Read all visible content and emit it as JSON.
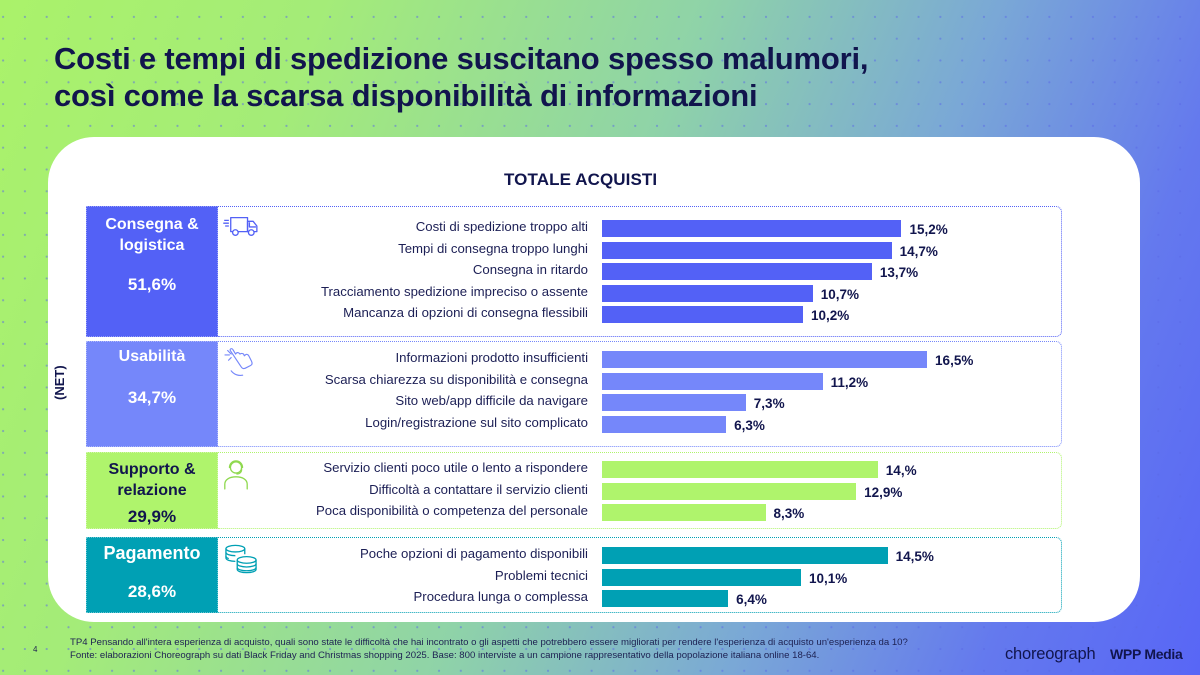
{
  "slide": {
    "title_line1": "Costi e tempi di spedizione suscitano spesso malumori,",
    "title_line2": "così come la scarsa disponibilità di informazioni",
    "page_number": "4",
    "footnote_line1": "TP4 Pensando all'intera esperienza di acquisto, quali sono state le difficoltà che hai incontrato o gli aspetti che potrebbero essere migliorati per rendere l'esperienza di acquisto un'esperienza da 10?",
    "footnote_line2": "Fonte: elaborazioni Choreograph su dati Black Friday and Christmas shopping 2025. Base: 800 interviste a un campione rappresentativo della popolazione italiana online 18-64.",
    "logo_choreograph": "choreograph",
    "logo_wpp": "WPP Media"
  },
  "chart_data": {
    "type": "bar",
    "orientation": "horizontal",
    "title": "TOTALE ACQUISTI",
    "net_axis_label": "(NET)",
    "xlabel": "",
    "ylabel": "",
    "unit": "%",
    "xlim": [
      0,
      16.5
    ],
    "groups": [
      {
        "name": "Consegna & logistica",
        "name_lines": [
          "Consegna &",
          "logistica"
        ],
        "net_value": 51.6,
        "net_label": "51,6%",
        "icon": "delivery-truck-icon",
        "color": "#5361f6",
        "text_color": "#ffffff",
        "items": [
          {
            "label": "Costi di spedizione troppo alti",
            "value": 15.2,
            "value_label": "15,2%"
          },
          {
            "label": "Tempi di consegna troppo lunghi",
            "value": 14.7,
            "value_label": "14,7%"
          },
          {
            "label": "Consegna in ritardo",
            "value": 13.7,
            "value_label": "13,7%"
          },
          {
            "label": "Tracciamento spedizione impreciso o assente",
            "value": 10.7,
            "value_label": "10,7%"
          },
          {
            "label": "Mancanza di opzioni di consegna flessibili",
            "value": 10.2,
            "value_label": "10,2%"
          }
        ]
      },
      {
        "name": "Usabilità",
        "name_lines": [
          "Usabilità"
        ],
        "net_value": 34.7,
        "net_label": "34,7%",
        "icon": "hand-touch-icon",
        "color": "#7587fa",
        "text_color": "#ffffff",
        "items": [
          {
            "label": "Informazioni prodotto insufficienti",
            "value": 16.5,
            "value_label": "16,5%"
          },
          {
            "label": "Scarsa chiarezza su disponibilità e consegna",
            "value": 11.2,
            "value_label": "11,2%"
          },
          {
            "label": "Sito web/app difficile da navigare",
            "value": 7.3,
            "value_label": "7,3%"
          },
          {
            "label": "Login/registrazione sul sito complicato",
            "value": 6.3,
            "value_label": "6,3%"
          }
        ]
      },
      {
        "name": "Supporto & relazione",
        "name_lines": [
          "Supporto &",
          "relazione"
        ],
        "net_value": 29.9,
        "net_label": "29,9%",
        "icon": "headset-agent-icon",
        "color": "#aff46c",
        "text_color": "#11154d",
        "items": [
          {
            "label": "Servizio clienti poco utile o lento a rispondere",
            "value": 14.0,
            "value_label": "14,%"
          },
          {
            "label": "Difficoltà a contattare il servizio clienti",
            "value": 12.9,
            "value_label": "12,9%"
          },
          {
            "label": "Poca disponibilità o competenza del personale",
            "value": 8.3,
            "value_label": "8,3%"
          }
        ]
      },
      {
        "name": "Pagamento",
        "name_lines": [
          "Pagamento"
        ],
        "net_value": 28.6,
        "net_label": "28,6%",
        "icon": "coins-stack-icon",
        "color": "#00a0b4",
        "text_color": "#ffffff",
        "items": [
          {
            "label": "Poche opzioni di pagamento disponibili",
            "value": 14.5,
            "value_label": "14,5%"
          },
          {
            "label": "Problemi tecnici",
            "value": 10.1,
            "value_label": "10,1%"
          },
          {
            "label": "Procedura lunga o complessa",
            "value": 6.4,
            "value_label": "6,4%"
          }
        ]
      }
    ]
  }
}
